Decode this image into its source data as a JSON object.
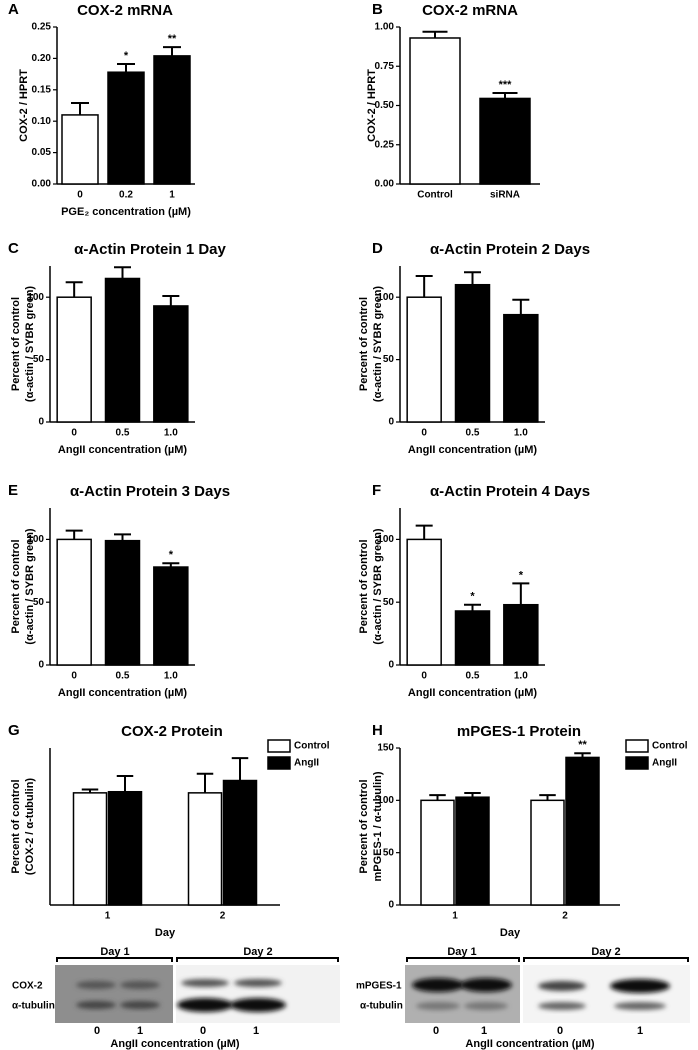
{
  "chart_data": [
    {
      "type": "bar",
      "label": "A",
      "title": "COX-2 mRNA",
      "ylabel": [
        "COX-2 / HPRT"
      ],
      "xlabel": "PGE₂ concentration (µM)",
      "categories": [
        "0",
        "0.2",
        "1"
      ],
      "values": [
        0.11,
        0.178,
        0.204
      ],
      "errors": [
        0.019,
        0.013,
        0.014
      ],
      "colors": [
        "#ffffff",
        "#000000",
        "#000000"
      ],
      "stars": [
        null,
        "*",
        "**"
      ],
      "ylim": [
        0,
        0.25
      ],
      "yticks": [
        {
          "value": 0,
          "label": "0.00"
        },
        0.05,
        {
          "value": 0.1,
          "label": "0.10"
        },
        0.15,
        {
          "value": 0.2,
          "label": "0.20"
        },
        0.25
      ]
    },
    {
      "type": "bar",
      "label": "B",
      "title": "COX-2 mRNA",
      "ylabel": [
        "COX-2 / HPRT"
      ],
      "categories": [
        "Control",
        "siRNA"
      ],
      "values": [
        0.93,
        0.545
      ],
      "errors": [
        0.04,
        0.035
      ],
      "colors": [
        "#ffffff",
        "#000000"
      ],
      "stars": [
        null,
        "***"
      ],
      "ylim": [
        0,
        1
      ],
      "yticks": [
        {
          "value": 0,
          "label": "0.00"
        },
        0.25,
        {
          "value": 0.5,
          "label": "0.50"
        },
        0.75,
        {
          "value": 1,
          "label": "1.00"
        }
      ]
    },
    {
      "type": "bar",
      "label": "C",
      "title": "α-Actin Protein 1 Day",
      "ylabel": [
        "Percent of control",
        "(α-actin / SYBR green)"
      ],
      "xlabel": "AngII concentration (µM)",
      "categories": [
        "0",
        "0.5",
        "1.0"
      ],
      "values": [
        100,
        115,
        93
      ],
      "errors": [
        12,
        9,
        8
      ],
      "colors": [
        "#ffffff",
        "#000000",
        "#000000"
      ],
      "stars": [
        null,
        null,
        null
      ],
      "ylim": [
        0,
        125
      ],
      "yticks": [
        0,
        50,
        100
      ]
    },
    {
      "type": "bar",
      "label": "D",
      "title": "α-Actin Protein 2 Days",
      "ylabel": [
        "Percent of control",
        "(α-actin / SYBR green)"
      ],
      "xlabel": "AngII concentration (µM)",
      "categories": [
        "0",
        "0.5",
        "1.0"
      ],
      "values": [
        100,
        110,
        86
      ],
      "errors": [
        17,
        10,
        12
      ],
      "colors": [
        "#ffffff",
        "#000000",
        "#000000"
      ],
      "stars": [
        null,
        null,
        null
      ],
      "ylim": [
        0,
        125
      ],
      "yticks": [
        0,
        50,
        100
      ]
    },
    {
      "type": "bar",
      "label": "E",
      "title": "α-Actin Protein 3 Days",
      "ylabel": [
        "Percent of control",
        "(α-actin / SYBR green)"
      ],
      "xlabel": "AngII concentration (µM)",
      "categories": [
        "0",
        "0.5",
        "1.0"
      ],
      "values": [
        100,
        99,
        78
      ],
      "errors": [
        7,
        5,
        3
      ],
      "colors": [
        "#ffffff",
        "#000000",
        "#000000"
      ],
      "stars": [
        null,
        null,
        "*"
      ],
      "ylim": [
        0,
        125
      ],
      "yticks": [
        0,
        50,
        100
      ]
    },
    {
      "type": "bar",
      "label": "F",
      "title": "α-Actin Protein 4 Days",
      "ylabel": [
        "Percent of control",
        "(α-actin / SYBR green)"
      ],
      "xlabel": "AngII concentration (µM)",
      "categories": [
        "0",
        "0.5",
        "1.0"
      ],
      "values": [
        100,
        43,
        48
      ],
      "errors": [
        11,
        5,
        17
      ],
      "colors": [
        "#ffffff",
        "#000000",
        "#000000"
      ],
      "stars": [
        null,
        "*",
        "*"
      ],
      "ylim": [
        0,
        125
      ],
      "yticks": [
        0,
        50,
        100
      ]
    },
    {
      "type": "grouped-bar",
      "label": "G",
      "title": "COX-2 Protein",
      "ylabel": [
        "Percent of control",
        "(COX-2 / α-tubulin)"
      ],
      "xlabel": "Day",
      "categories": [
        "1",
        "2"
      ],
      "series": [
        {
          "name": "Control",
          "color": "#ffffff",
          "values": [
            100,
            100
          ],
          "errors": [
            3,
            17
          ],
          "stars": [
            null,
            null
          ]
        },
        {
          "name": "AngII",
          "color": "#000000",
          "values": [
            101,
            111
          ],
          "errors": [
            14,
            20
          ],
          "stars": [
            null,
            null
          ]
        }
      ],
      "ylim": [
        0,
        140
      ]
    },
    {
      "type": "grouped-bar",
      "label": "H",
      "title": "mPGES-1 Protein",
      "ylabel": [
        "Percent of control",
        "mPGES-1 / α-tubulin)"
      ],
      "xlabel": "Day",
      "categories": [
        "1",
        "2"
      ],
      "series": [
        {
          "name": "Control",
          "color": "#ffffff",
          "values": [
            100,
            100
          ],
          "errors": [
            5,
            5
          ],
          "stars": [
            null,
            null
          ]
        },
        {
          "name": "AngII",
          "color": "#000000",
          "values": [
            103,
            141
          ],
          "errors": [
            4,
            4
          ],
          "stars": [
            null,
            "**"
          ]
        }
      ],
      "ylim": [
        0,
        150
      ],
      "yticks": [
        0,
        50,
        100,
        150
      ]
    }
  ],
  "blots": [
    {
      "days": [
        "Day 1",
        "Day 2"
      ],
      "bands": [
        "COX-2",
        "α-tubulin"
      ],
      "lanes": [
        "0",
        "1",
        "0",
        "1"
      ],
      "xlabel": "AngII concentration (µM)"
    },
    {
      "days": [
        "Day 1",
        "Day 2"
      ],
      "bands": [
        "mPGES-1",
        "α-tubulin"
      ],
      "lanes": [
        "0",
        "1",
        "0",
        "1"
      ],
      "xlabel": "AngII concentration (µM)"
    }
  ]
}
